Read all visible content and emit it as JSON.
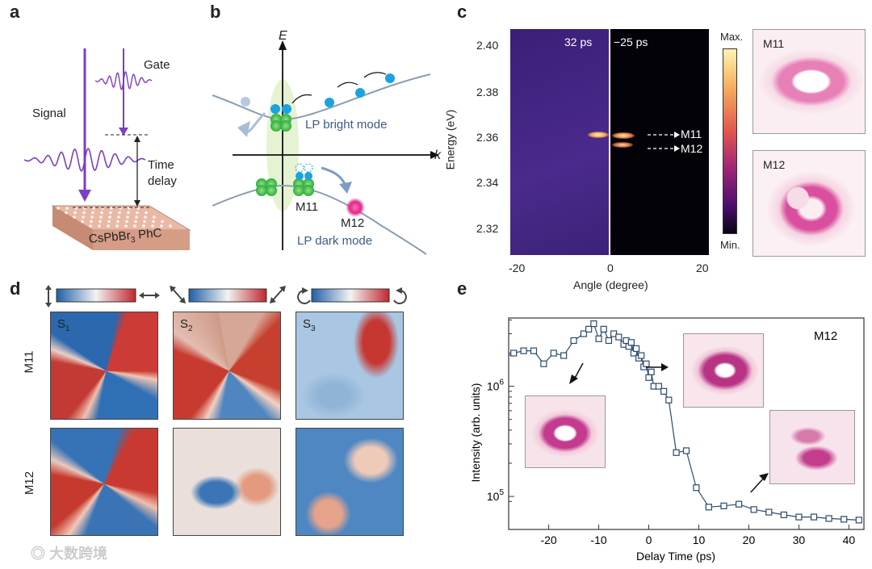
{
  "panels": {
    "a": "a",
    "b": "b",
    "c": "c",
    "d": "d",
    "e": "e"
  },
  "panel_a": {
    "signal": "Signal",
    "gate": "Gate",
    "time": "Time",
    "delay": "delay",
    "sample_prefix": "CsPbBr",
    "sample_sub": "3",
    "sample_suffix": " PhC"
  },
  "panel_b": {
    "e_axis": "E",
    "k_axis": "k",
    "bright": "LP bright mode",
    "dark": "LP dark mode",
    "m11": "M11",
    "m12": "M12"
  },
  "panel_c": {
    "ylabel": "Energy (eV)",
    "xlabel": "Angle (degree)",
    "yticks": [
      "2.40",
      "2.38",
      "2.36",
      "2.34",
      "2.32"
    ],
    "xticks": [
      "-20",
      "0",
      "20"
    ],
    "t_left": "32 ps",
    "t_right": "−25 ps",
    "mode1": "M11",
    "mode2": "M12",
    "cmax": "Max.",
    "cmin": "Min.",
    "inset1": "M11",
    "inset2": "M12"
  },
  "panel_d": {
    "s1": "S",
    "s2": "S",
    "s3": "S",
    "sub1": "1",
    "sub2": "2",
    "sub3": "3",
    "row1": "M11",
    "row2": "M12"
  },
  "chart_data": {
    "type": "scatter",
    "title": "M12",
    "xlabel": "Delay Time (ps)",
    "ylabel": "Intensity (arb. units)",
    "xlim": [
      -28,
      43
    ],
    "ylim_log10": [
      4.7,
      6.62
    ],
    "xticks": [
      "-20",
      "-10",
      "0",
      "10",
      "20",
      "30",
      "40"
    ],
    "yticks": [
      {
        "exp": 5,
        "label": "10",
        "sup": "5"
      },
      {
        "exp": 6,
        "label": "10",
        "sup": "6"
      }
    ],
    "x": [
      -29,
      -27,
      -25,
      -23,
      -21,
      -19,
      -17,
      -15,
      -13,
      -12,
      -11,
      -10,
      -9,
      -8,
      -7,
      -6,
      -5,
      -4.5,
      -4,
      -3.5,
      -3,
      -2.5,
      -2,
      -1.5,
      -1,
      -0.5,
      0,
      0.5,
      1,
      2,
      3,
      4,
      5.5,
      7.5,
      9.5,
      12,
      15,
      18,
      21,
      24,
      27,
      30,
      33,
      36,
      39,
      42
    ],
    "y": [
      1900000.0,
      2000000.0,
      2100000.0,
      2100000.0,
      1600000.0,
      2000000.0,
      1900000.0,
      2600000.0,
      3000000.0,
      3300000.0,
      3700000.0,
      2700000.0,
      3300000.0,
      2600000.0,
      3000000.0,
      2800000.0,
      2400000.0,
      2600000.0,
      2300000.0,
      2500000.0,
      2000000.0,
      2200000.0,
      1800000.0,
      1900000.0,
      1500000.0,
      1600000.0,
      1200000.0,
      1350000.0,
      1000000.0,
      1000000.0,
      900000.0,
      750000.0,
      250000.0,
      260000.0,
      120000.0,
      80000.0,
      82000.0,
      85000.0,
      76000.0,
      72000.0,
      68000.0,
      65000.0,
      65000.0,
      63000.0,
      62000.0,
      61000.0
    ]
  },
  "colors": {
    "purple": "#7b3fc4",
    "blue": "#1aa3e0",
    "green": "#2fae3a",
    "magenta": "#e0288a",
    "line": "#2c4a6b"
  },
  "watermark": "大数跨境"
}
